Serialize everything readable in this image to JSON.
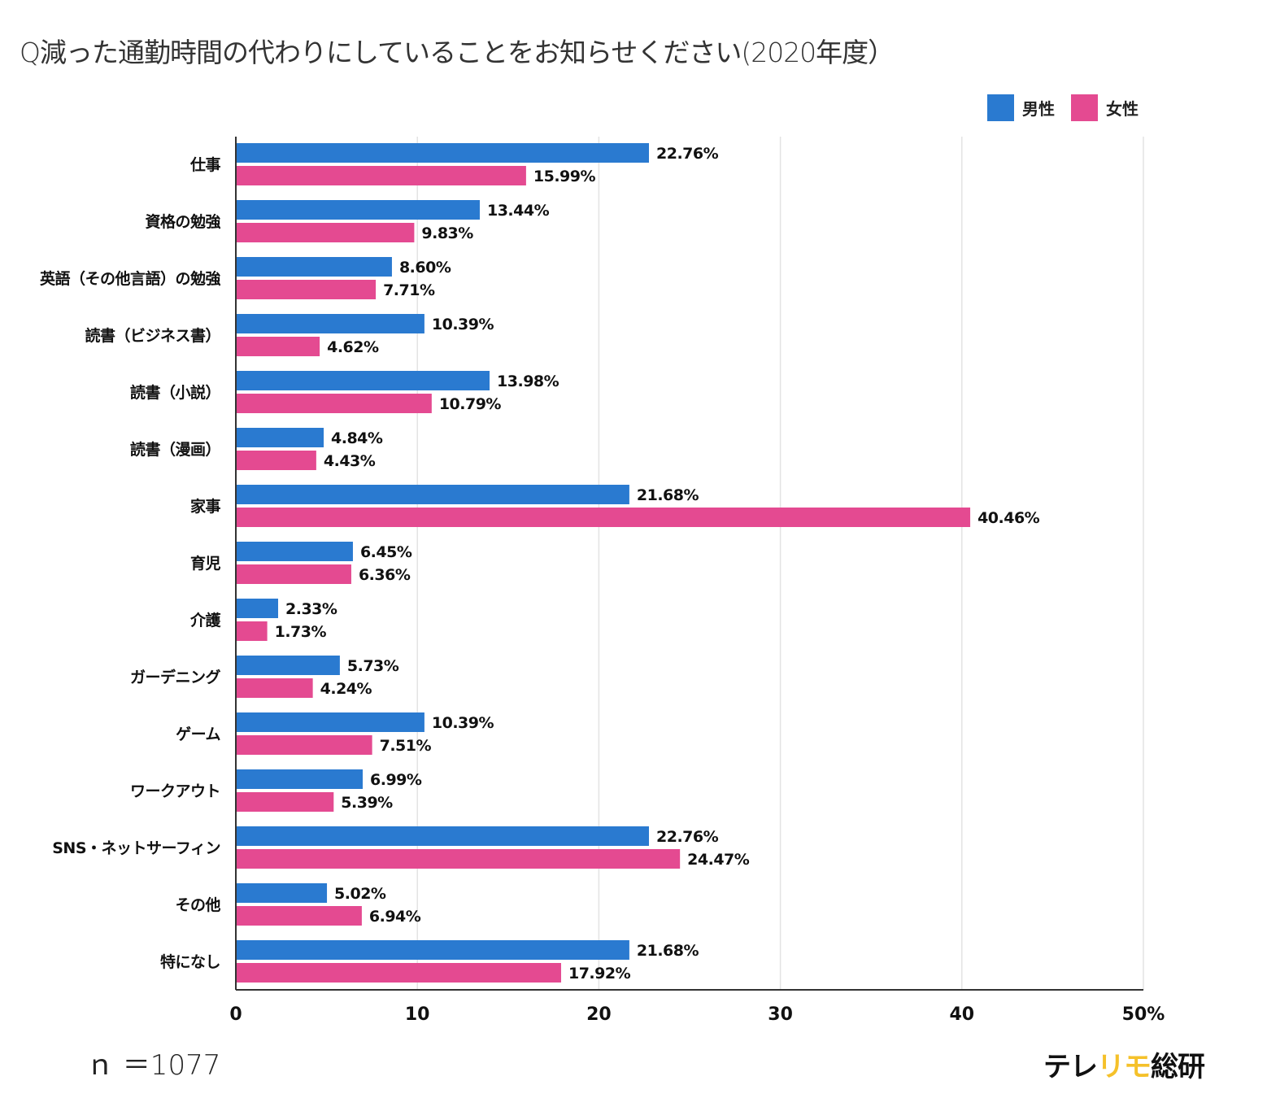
{
  "chart_data": {
    "type": "bar",
    "orientation": "horizontal",
    "title": "Q減った通勤時間の代わりにしていることをお知らせください(2020年度）",
    "xlabel": "",
    "ylabel": "",
    "xlim": [
      0,
      50
    ],
    "x_ticks": [
      "0",
      "10",
      "20",
      "30",
      "40",
      "50%"
    ],
    "grid": true,
    "legend_position": "top-right",
    "categories": [
      "仕事",
      "資格の勉強",
      "英語（その他言語）の勉強",
      "読書（ビジネス書）",
      "読書（小説）",
      "読書（漫画）",
      "家事",
      "育児",
      "介護",
      "ガーデニング",
      "ゲーム",
      "ワークアウト",
      "SNS・ネットサーフィン",
      "その他",
      "特になし"
    ],
    "series": [
      {
        "name": "男性",
        "color": "#2a7ad0",
        "values": [
          22.76,
          13.44,
          8.6,
          10.39,
          13.98,
          4.84,
          21.68,
          6.45,
          2.33,
          5.73,
          10.39,
          6.99,
          22.76,
          5.02,
          21.68
        ],
        "labels": [
          "22.76%",
          "13.44%",
          "8.60%",
          "10.39%",
          "13.98%",
          "4.84%",
          "21.68%",
          "6.45%",
          "2.33%",
          "5.73%",
          "10.39%",
          "6.99%",
          "22.76%",
          "5.02%",
          "21.68%"
        ]
      },
      {
        "name": "女性",
        "color": "#e44a91",
        "values": [
          15.99,
          9.83,
          7.71,
          4.62,
          10.79,
          4.43,
          40.46,
          6.36,
          1.73,
          4.24,
          7.51,
          5.39,
          24.47,
          6.94,
          17.92
        ],
        "labels": [
          "15.99%",
          "9.83%",
          "7.71%",
          "4.62%",
          "10.79%",
          "4.43%",
          "40.46%",
          "6.36%",
          "1.73%",
          "4.24%",
          "7.51%",
          "5.39%",
          "24.47%",
          "6.94%",
          "17.92%"
        ]
      }
    ]
  },
  "legend": {
    "male": "男性",
    "female": "女性",
    "male_color": "#2a7ad0",
    "female_color": "#e44a91"
  },
  "footer": {
    "sample_size": "ｎ ＝1077",
    "brand_prefix": "テレ",
    "brand_accent": "リモ",
    "brand_suffix": "総研",
    "brand_accent_color": "#f5c12a"
  }
}
